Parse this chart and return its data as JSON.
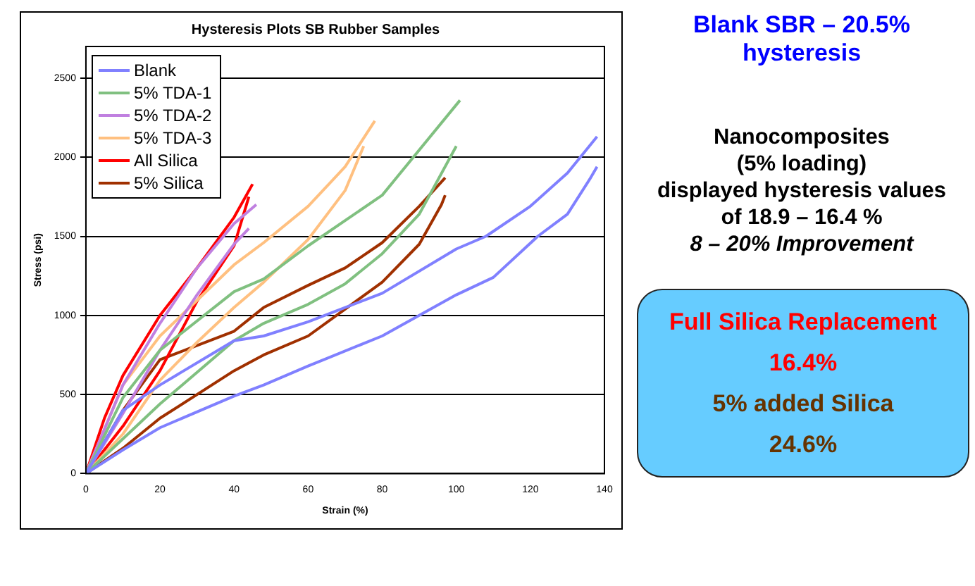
{
  "chart_data": {
    "type": "line",
    "title": "Hysteresis Plots SB Rubber Samples",
    "xlabel": "Strain (%)",
    "ylabel": "Stress (psi)",
    "xlim": [
      0,
      140
    ],
    "xticks": [
      0,
      20,
      40,
      60,
      80,
      100,
      120,
      140
    ],
    "ylim": [
      0,
      2700
    ],
    "yticks": [
      0,
      500,
      1000,
      1500,
      2000,
      2500
    ],
    "grid": "y",
    "legend": "top left",
    "marker": "none",
    "line_style": "solid",
    "series": [
      {
        "name": "Blank",
        "color": "#8080ff",
        "x": [
          0,
          10,
          20,
          40,
          48,
          60,
          80,
          100,
          108,
          120,
          130,
          138
        ],
        "values": [
          0,
          400,
          560,
          840,
          870,
          960,
          1140,
          1420,
          1500,
          1690,
          1900,
          2130
        ]
      },
      {
        "color": "#8080ff",
        "x": [
          0,
          10,
          20,
          40,
          48,
          60,
          80,
          90,
          100,
          110,
          122,
          130,
          136,
          138
        ],
        "values": [
          0,
          150,
          290,
          490,
          560,
          680,
          870,
          1000,
          1130,
          1240,
          1500,
          1640,
          1860,
          1940
        ]
      },
      {
        "name": "5% TDA-1",
        "color": "#80c080",
        "x": [
          0,
          10,
          20,
          40,
          48,
          60,
          80,
          101
        ],
        "values": [
          0,
          480,
          780,
          1150,
          1230,
          1440,
          1760,
          2360
        ]
      },
      {
        "color": "#80c080",
        "x": [
          0,
          10,
          20,
          40,
          48,
          60,
          70,
          80,
          90,
          100
        ],
        "values": [
          0,
          220,
          440,
          840,
          950,
          1070,
          1200,
          1390,
          1640,
          2070
        ]
      },
      {
        "name": "5% TDA-2",
        "color": "#c080e0",
        "x": [
          0,
          10,
          20,
          30,
          40,
          46
        ],
        "values": [
          0,
          560,
          950,
          1300,
          1580,
          1700
        ]
      },
      {
        "color": "#c080e0",
        "x": [
          0,
          10,
          20,
          30,
          40,
          44
        ],
        "values": [
          0,
          380,
          780,
          1130,
          1450,
          1550
        ]
      },
      {
        "name": "5% TDA-3",
        "color": "#ffc080",
        "x": [
          0,
          10,
          20,
          40,
          48,
          60,
          70,
          78
        ],
        "values": [
          0,
          560,
          870,
          1320,
          1460,
          1690,
          1940,
          2230
        ]
      },
      {
        "color": "#ffc080",
        "x": [
          0,
          10,
          20,
          30,
          40,
          48,
          60,
          70,
          75
        ],
        "values": [
          0,
          250,
          590,
          830,
          1050,
          1210,
          1480,
          1790,
          2070
        ]
      },
      {
        "name": "All Silica",
        "color": "#ff0000",
        "x": [
          0,
          5,
          10,
          20,
          30,
          40,
          45
        ],
        "values": [
          0,
          350,
          620,
          1000,
          1300,
          1620,
          1830
        ]
      },
      {
        "color": "#ff0000",
        "x": [
          0,
          10,
          20,
          30,
          40,
          44
        ],
        "values": [
          0,
          300,
          650,
          1090,
          1440,
          1750
        ]
      },
      {
        "name": "5% Silica",
        "color": "#a03000",
        "x": [
          0,
          10,
          20,
          40,
          48,
          60,
          70,
          80,
          90,
          97
        ],
        "values": [
          0,
          400,
          720,
          900,
          1050,
          1190,
          1300,
          1460,
          1690,
          1870
        ]
      },
      {
        "color": "#a03000",
        "x": [
          0,
          10,
          20,
          40,
          48,
          60,
          70,
          80,
          90,
          96,
          97
        ],
        "values": [
          0,
          160,
          350,
          650,
          750,
          870,
          1040,
          1210,
          1450,
          1700,
          1760
        ]
      }
    ],
    "annotations": [
      "Blank SBR – 20.5% hysteresis",
      "Nanocomposites",
      "(5% loading)",
      "displayed hysteresis values",
      "of 18.9 – 16.4 %",
      "8 – 20% Improvement",
      "Full Silica Replacement",
      "16.4%",
      "5% added Silica",
      "24.6%"
    ]
  }
}
